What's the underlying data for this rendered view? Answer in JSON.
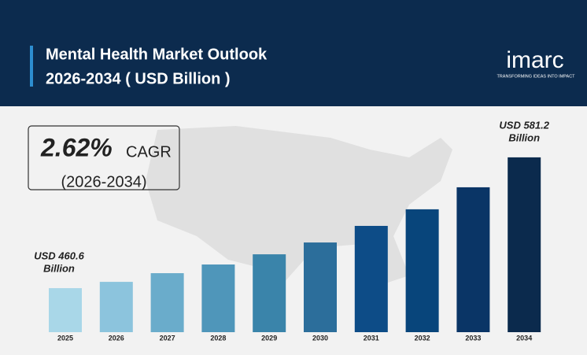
{
  "chart_data": {
    "type": "bar",
    "title": [
      "Mental Health Market Outlook",
      "2026-2034 ( USD Billion )"
    ],
    "logo": {
      "name": "imarc",
      "tagline": "TRANSFORMING IDEAS INTO IMPACT"
    },
    "cagr": {
      "value": "2.62%",
      "label": "CAGR",
      "period": "(2026-2034)"
    },
    "categories": [
      "2025",
      "2026",
      "2027",
      "2028",
      "2029",
      "2030",
      "2031",
      "2032",
      "2033",
      "2034"
    ],
    "values": [
      460.6,
      466.4,
      474.4,
      482.4,
      491.8,
      502.7,
      518.0,
      533.3,
      553.6,
      581.2
    ],
    "colors": [
      "#a9d7e8",
      "#8cc4dd",
      "#6aaccb",
      "#4f96ba",
      "#3a84aa",
      "#2c6e9b",
      "#0d4c87",
      "#08457b",
      "#0a3566",
      "#0b2a4d"
    ],
    "annotations": [
      [
        "USD 460.6",
        "Billion"
      ],
      [
        "USD 581.2",
        "Billion"
      ]
    ],
    "ylim": [
      420,
      600
    ]
  }
}
